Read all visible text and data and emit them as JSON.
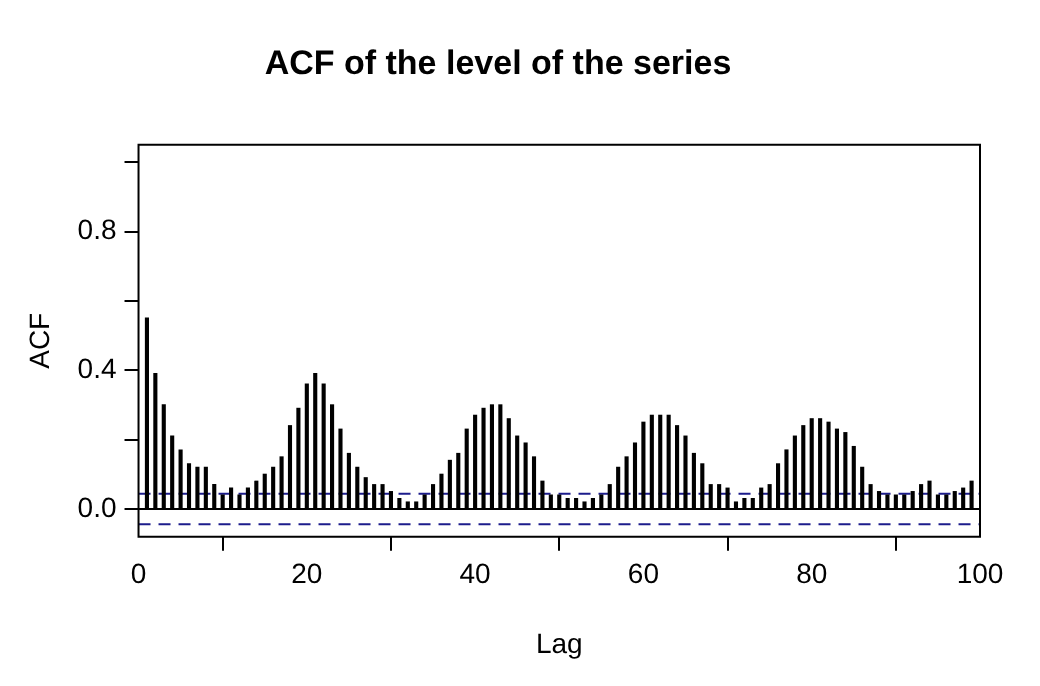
{
  "chart_data": {
    "type": "bar",
    "title": "ACF of the level of the series",
    "xlabel": "Lag",
    "ylabel": "ACF",
    "x": [
      1,
      2,
      3,
      4,
      5,
      6,
      7,
      8,
      9,
      10,
      11,
      12,
      13,
      14,
      15,
      16,
      17,
      18,
      19,
      20,
      21,
      22,
      23,
      24,
      25,
      26,
      27,
      28,
      29,
      30,
      31,
      32,
      33,
      34,
      35,
      36,
      37,
      38,
      39,
      40,
      41,
      42,
      43,
      44,
      45,
      46,
      47,
      48,
      49,
      50,
      51,
      52,
      53,
      54,
      55,
      56,
      57,
      58,
      59,
      60,
      61,
      62,
      63,
      64,
      65,
      66,
      67,
      68,
      69,
      70,
      71,
      72,
      73,
      74,
      75,
      76,
      77,
      78,
      79,
      80,
      81,
      82,
      83,
      84,
      85,
      86,
      87,
      88,
      89,
      90,
      91,
      92,
      93,
      94,
      95,
      96,
      97,
      98,
      99
    ],
    "values": [
      0.55,
      0.39,
      0.3,
      0.21,
      0.17,
      0.13,
      0.12,
      0.12,
      0.07,
      0.04,
      0.06,
      0.04,
      0.06,
      0.08,
      0.1,
      0.12,
      0.15,
      0.24,
      0.29,
      0.36,
      0.39,
      0.36,
      0.3,
      0.23,
      0.16,
      0.12,
      0.09,
      0.07,
      0.07,
      0.05,
      0.03,
      0.02,
      0.02,
      0.04,
      0.07,
      0.1,
      0.14,
      0.16,
      0.23,
      0.27,
      0.29,
      0.3,
      0.3,
      0.26,
      0.21,
      0.19,
      0.15,
      0.08,
      0.04,
      0.04,
      0.03,
      0.03,
      0.02,
      0.03,
      0.04,
      0.07,
      0.12,
      0.15,
      0.19,
      0.25,
      0.27,
      0.27,
      0.27,
      0.24,
      0.21,
      0.16,
      0.13,
      0.07,
      0.07,
      0.06,
      0.02,
      0.03,
      0.03,
      0.06,
      0.07,
      0.13,
      0.17,
      0.21,
      0.24,
      0.26,
      0.26,
      0.25,
      0.23,
      0.22,
      0.18,
      0.12,
      0.07,
      0.05,
      0.04,
      0.04,
      0.04,
      0.05,
      0.07,
      0.08,
      0.04,
      0.04,
      0.05,
      0.06,
      0.08
    ],
    "color": "#000000",
    "xlim": [
      0,
      100
    ],
    "xticks": [
      0,
      20,
      40,
      60,
      80,
      100
    ],
    "ylim": [
      -0.08,
      1.05
    ],
    "yticks": [
      {
        "value": 0,
        "label": "0.0"
      },
      {
        "value": 0.2,
        "label": null
      },
      {
        "value": 0.4,
        "label": "0.4"
      },
      {
        "value": 0.6,
        "label": null
      },
      {
        "value": 0.8,
        "label": "0.8"
      },
      {
        "value": 1,
        "label": null
      }
    ],
    "ref_lines": [
      {
        "axis": "y",
        "value": 0,
        "color": "#000000",
        "line_style": "solid"
      },
      {
        "axis": "y",
        "value": 0.044,
        "color": "#1c1c8c",
        "line_style": "dashed"
      },
      {
        "axis": "y",
        "value": -0.044,
        "color": "#1c1c8c",
        "line_style": "dashed"
      }
    ],
    "grid": false,
    "legend": false
  }
}
